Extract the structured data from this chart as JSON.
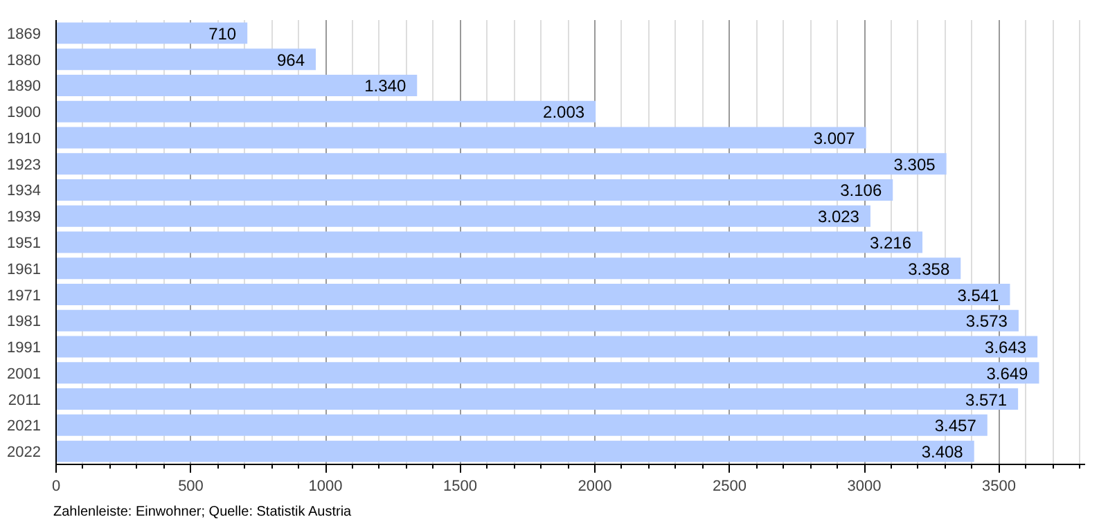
{
  "chart_data": {
    "type": "bar",
    "orientation": "horizontal",
    "categories": [
      "1869",
      "1880",
      "1890",
      "1900",
      "1910",
      "1923",
      "1934",
      "1939",
      "1951",
      "1961",
      "1971",
      "1981",
      "1991",
      "2001",
      "2011",
      "2021",
      "2022"
    ],
    "values": [
      710,
      964,
      1340,
      2003,
      3007,
      3305,
      3106,
      3023,
      3216,
      3358,
      3541,
      3573,
      3643,
      3649,
      3571,
      3457,
      3408
    ],
    "value_labels": [
      "710",
      "964",
      "1.340",
      "2.003",
      "3.007",
      "3.305",
      "3.106",
      "3.023",
      "3.216",
      "3.358",
      "3.541",
      "3.573",
      "3.643",
      "3.649",
      "3.571",
      "3.457",
      "3.408"
    ],
    "color": "#b3ccff",
    "xlim": [
      0,
      3820
    ],
    "xticks": [
      0,
      {
        "value": 100,
        "label": null
      },
      {
        "value": 200,
        "label": null
      },
      {
        "value": 300,
        "label": null
      },
      {
        "value": 400,
        "label": null
      },
      500,
      {
        "value": 600,
        "label": null
      },
      {
        "value": 700,
        "label": null
      },
      {
        "value": 800,
        "label": null
      },
      {
        "value": 900,
        "label": null
      },
      1000,
      {
        "value": 1100,
        "label": null
      },
      {
        "value": 1200,
        "label": null
      },
      {
        "value": 1300,
        "label": null
      },
      {
        "value": 1400,
        "label": null
      },
      1500,
      {
        "value": 1600,
        "label": null
      },
      {
        "value": 1700,
        "label": null
      },
      {
        "value": 1800,
        "label": null
      },
      {
        "value": 1900,
        "label": null
      },
      2000,
      {
        "value": 2100,
        "label": null
      },
      {
        "value": 2200,
        "label": null
      },
      {
        "value": 2300,
        "label": null
      },
      {
        "value": 2400,
        "label": null
      },
      2500,
      {
        "value": 2600,
        "label": null
      },
      {
        "value": 2700,
        "label": null
      },
      {
        "value": 2800,
        "label": null
      },
      {
        "value": 2900,
        "label": null
      },
      3000,
      {
        "value": 3100,
        "label": null
      },
      {
        "value": 3200,
        "label": null
      },
      {
        "value": 3300,
        "label": null
      },
      {
        "value": 3400,
        "label": null
      },
      3500,
      {
        "value": 3600,
        "label": null
      },
      {
        "value": 3700,
        "label": null
      },
      {
        "value": 3800,
        "label": null
      }
    ],
    "grid": "x",
    "annotations": [
      "Zahlenleiste: Einwohner; Quelle: Statistik Austria"
    ]
  }
}
